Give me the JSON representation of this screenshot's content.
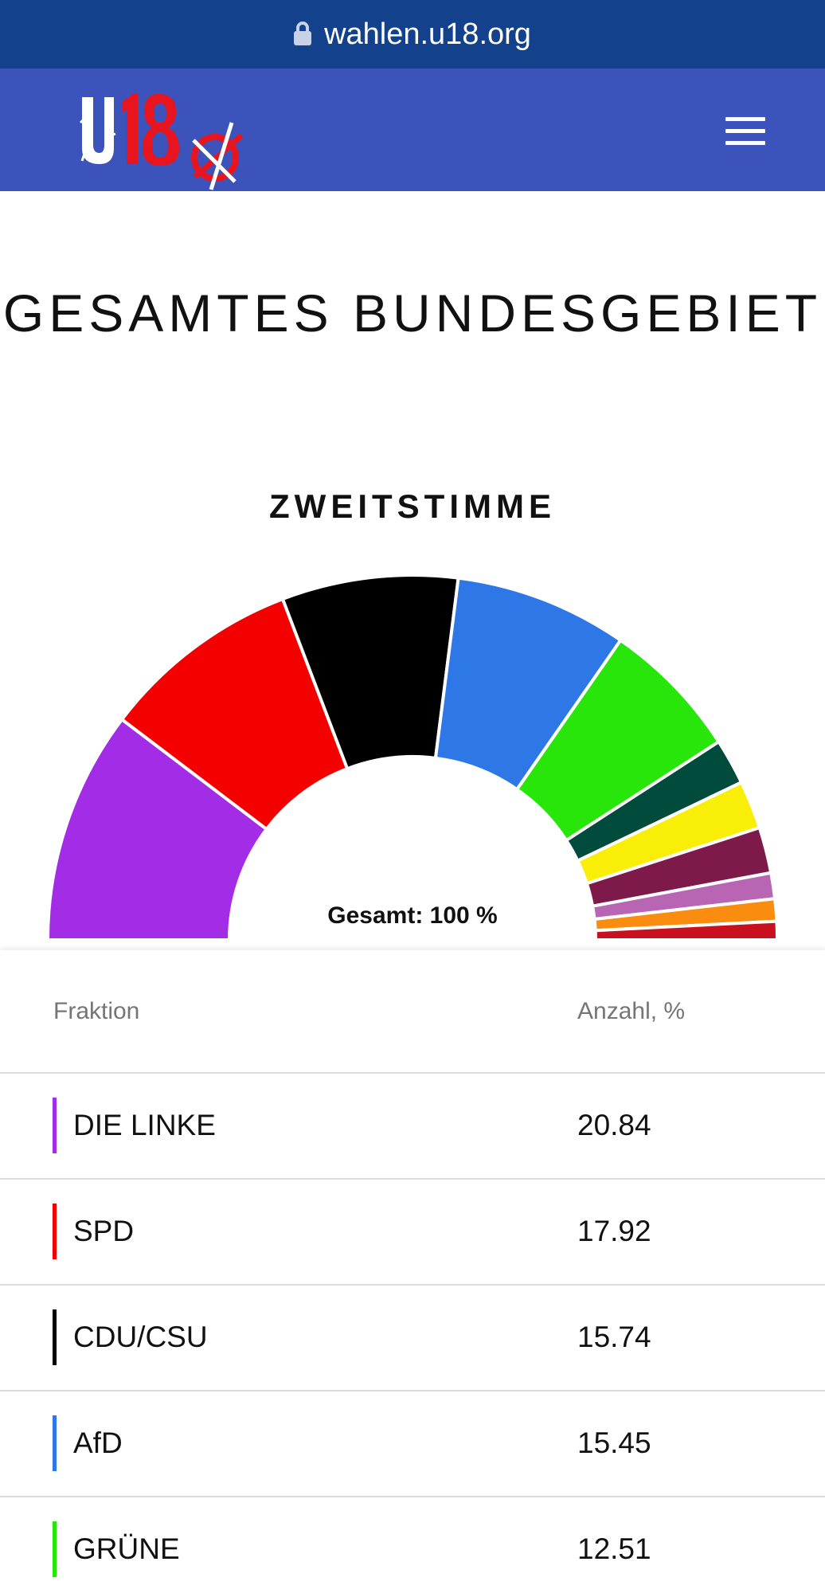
{
  "browser": {
    "url": "wahlen.u18.org"
  },
  "header": {
    "logo_text": "U18",
    "menu_icon": "hamburger-icon"
  },
  "page": {
    "title": "GESAMTES BUNDESGEBIET"
  },
  "chart_data": {
    "type": "pie",
    "style": "half-donut",
    "title": "ZWEITSTIMME",
    "center_label": "Gesamt: 100 %",
    "slices": [
      {
        "label": "DIE LINKE",
        "value": 20.84,
        "color": "#a32ce6"
      },
      {
        "label": "SPD",
        "value": 17.92,
        "color": "#f50000"
      },
      {
        "label": "CDU/CSU",
        "value": 15.74,
        "color": "#000000"
      },
      {
        "label": "AfD",
        "value": 15.45,
        "color": "#2d78e6"
      },
      {
        "label": "GRÜNE",
        "value": 12.51,
        "color": "#28e60a"
      },
      {
        "label": "",
        "value": 4.1,
        "color": "#004b3c"
      },
      {
        "label": "",
        "value": 4.3,
        "color": "#f8ee07"
      },
      {
        "label": "",
        "value": 4.1,
        "color": "#7d1a4a"
      },
      {
        "label": "",
        "value": 2.3,
        "color": "#b866b3"
      },
      {
        "label": "",
        "value": 2.0,
        "color": "#fa8c0f"
      },
      {
        "label": "",
        "value": 1.64,
        "color": "#c8101e"
      }
    ]
  },
  "table": {
    "headers": {
      "party": "Fraktion",
      "value": "Anzahl, %"
    },
    "rows": [
      {
        "party": "DIE LINKE",
        "value": "20.84",
        "color": "#a32ce6"
      },
      {
        "party": "SPD",
        "value": "17.92",
        "color": "#f50000"
      },
      {
        "party": "CDU/CSU",
        "value": "15.74",
        "color": "#000000"
      },
      {
        "party": "AfD",
        "value": "15.45",
        "color": "#2d78e6"
      },
      {
        "party": "GRÜNE",
        "value": "12.51",
        "color": "#28e60a"
      }
    ]
  }
}
